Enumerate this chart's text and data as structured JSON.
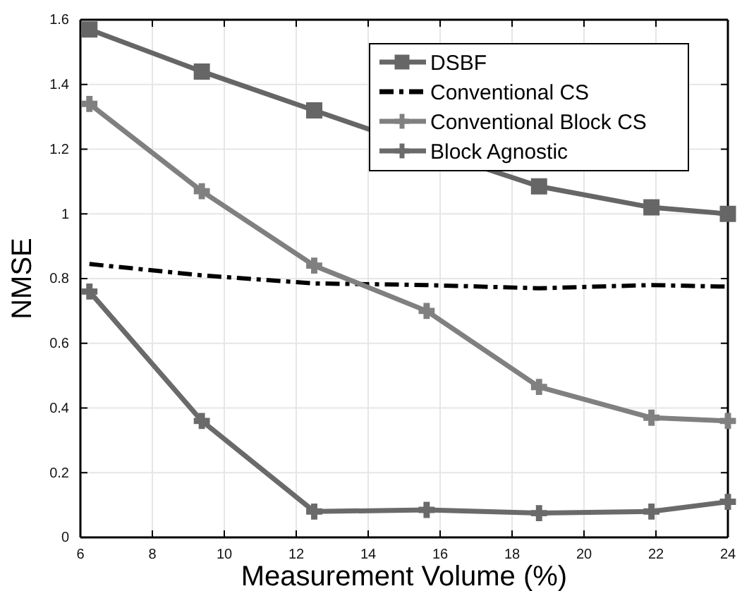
{
  "chart_data": {
    "type": "line",
    "xlabel": "Measurement Volume (%)",
    "ylabel": "NMSE",
    "x": [
      6.25,
      9.375,
      12.5,
      15.625,
      18.75,
      21.875,
      24
    ],
    "xlim": [
      6,
      24
    ],
    "xticks": [
      6,
      8,
      10,
      12,
      14,
      16,
      18,
      20,
      22,
      24
    ],
    "ylim": [
      0,
      1.6
    ],
    "yticks": [
      0,
      0.2,
      0.4,
      0.6,
      0.8,
      1,
      1.2,
      1.4,
      1.6
    ],
    "grid": true,
    "legend": "top right",
    "series": [
      {
        "name": "DSBF",
        "color": "#666666",
        "marker": "square",
        "line_style": "solid",
        "values": [
          1.57,
          1.44,
          1.32,
          1.2,
          1.085,
          1.02,
          1.0
        ]
      },
      {
        "name": "Conventional CS",
        "color": "#000000",
        "marker": "none",
        "line_style": "dashdot",
        "values": [
          0.845,
          0.81,
          0.785,
          0.78,
          0.77,
          0.78,
          0.775
        ]
      },
      {
        "name": "Conventional Block CS",
        "color": "#808080",
        "marker": "cross",
        "line_style": "solid",
        "values": [
          1.34,
          1.07,
          0.84,
          0.7,
          0.465,
          0.37,
          0.36
        ]
      },
      {
        "name": "Block Agnostic",
        "color": "#6a6a6a",
        "marker": "cross",
        "line_style": "solid",
        "values": [
          0.76,
          0.36,
          0.08,
          0.085,
          0.075,
          0.08,
          0.11
        ]
      }
    ]
  }
}
